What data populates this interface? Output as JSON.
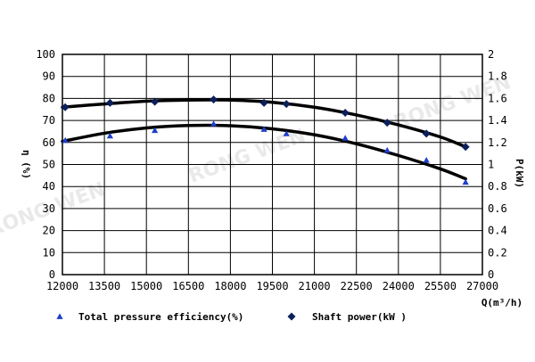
{
  "chart_data": {
    "type": "line",
    "x_axis": {
      "label": "Q(m³/h)",
      "min": 12000,
      "max": 27000,
      "ticks": [
        12000,
        13500,
        15000,
        16500,
        18000,
        19500,
        21000,
        22500,
        24000,
        25500,
        27000
      ]
    },
    "y_left": {
      "label": "η (%)",
      "min": 0,
      "max": 100,
      "ticks": [
        0,
        10,
        20,
        30,
        40,
        50,
        60,
        70,
        80,
        90,
        100
      ]
    },
    "y_right": {
      "label": "P(kW)",
      "min": 0,
      "max": 2,
      "ticks": [
        "0",
        "0.2",
        "0.4",
        "0.6",
        "0.8",
        "1",
        "1.2",
        "1.4",
        "1.6",
        "1.8",
        "2"
      ]
    },
    "grid": true,
    "legend_position": "bottom",
    "series": [
      {
        "name": "Total pressure efficiency(%)",
        "axis": "left",
        "marker": "triangle",
        "color": "#1f3fcc",
        "points": [
          [
            12100,
            61
          ],
          [
            13700,
            63
          ],
          [
            15300,
            65.5
          ],
          [
            17400,
            68.5
          ],
          [
            19200,
            66
          ],
          [
            20000,
            64
          ],
          [
            22100,
            62
          ],
          [
            23600,
            56.5
          ],
          [
            25000,
            52
          ],
          [
            26400,
            42
          ]
        ],
        "fit": [
          [
            12000,
            60.5
          ],
          [
            13500,
            64.2
          ],
          [
            15000,
            66.6
          ],
          [
            16500,
            67.7
          ],
          [
            18000,
            67.6
          ],
          [
            19500,
            66.2
          ],
          [
            21000,
            63.5
          ],
          [
            22500,
            59.4
          ],
          [
            24000,
            54.1
          ],
          [
            25500,
            48
          ],
          [
            26400,
            43.5
          ]
        ]
      },
      {
        "name": "Shaft power(kW )",
        "axis": "right",
        "marker": "diamond",
        "color": "#0b1f5c",
        "points": [
          [
            12100,
            1.52
          ],
          [
            13700,
            1.56
          ],
          [
            15300,
            1.57
          ],
          [
            17400,
            1.59
          ],
          [
            19200,
            1.56
          ],
          [
            20000,
            1.55
          ],
          [
            22100,
            1.47
          ],
          [
            23600,
            1.38
          ],
          [
            25000,
            1.28
          ],
          [
            26400,
            1.16
          ]
        ],
        "fit": [
          [
            12000,
            1.52
          ],
          [
            13500,
            1.55
          ],
          [
            15000,
            1.575
          ],
          [
            16500,
            1.585
          ],
          [
            18000,
            1.585
          ],
          [
            19500,
            1.565
          ],
          [
            21000,
            1.52
          ],
          [
            22500,
            1.45
          ],
          [
            24000,
            1.36
          ],
          [
            25500,
            1.25
          ],
          [
            26400,
            1.16
          ]
        ]
      }
    ],
    "watermarks": [
      "RONG WEN",
      "RONG WEN",
      "RONG WEN"
    ]
  }
}
